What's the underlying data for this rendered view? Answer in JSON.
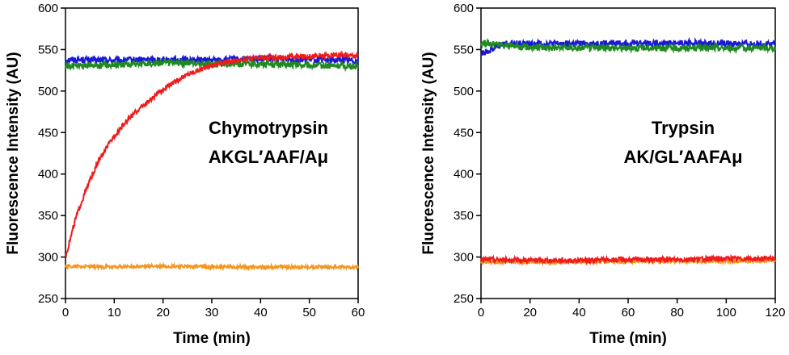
{
  "chart_data": [
    {
      "type": "line",
      "xlabel": "Time (min)",
      "ylabel": "Fluorescence Intensity (AU)",
      "xlim": [
        0,
        60
      ],
      "ylim": [
        250,
        600
      ],
      "xticks": [
        0,
        10,
        20,
        30,
        40,
        50,
        60
      ],
      "yticks": [
        250,
        300,
        350,
        400,
        450,
        500,
        550,
        600
      ],
      "annotation": [
        "Chymotrypsin",
        "AKGL′AAF/Aμ"
      ],
      "legend": "none",
      "series": [
        {
          "color": "#1a1ad6",
          "x": [
            0,
            10,
            20,
            30,
            40,
            50,
            60
          ],
          "y": [
            538,
            537,
            538,
            537,
            539,
            538,
            537
          ],
          "noise": 4
        },
        {
          "color": "#1f8a1f",
          "x": [
            0,
            10,
            20,
            30,
            40,
            50,
            60
          ],
          "y": [
            530,
            532,
            534,
            533,
            533,
            531,
            530
          ],
          "noise": 4
        },
        {
          "color": "#ee1c1c",
          "x": [
            0,
            1,
            2,
            3,
            5,
            7,
            10,
            13,
            15,
            18,
            20,
            23,
            25,
            28,
            30,
            33,
            35,
            40,
            45,
            50,
            55,
            60
          ],
          "y": [
            300,
            322,
            345,
            362,
            392,
            418,
            446,
            467,
            478,
            492,
            502,
            513,
            520,
            527,
            531,
            535,
            537,
            540,
            541,
            542,
            543,
            543
          ],
          "noise": 3
        },
        {
          "color": "#f5961e",
          "x": [
            0,
            10,
            20,
            30,
            40,
            50,
            60
          ],
          "y": [
            289,
            288,
            289,
            288,
            288,
            288,
            288
          ],
          "noise": 2
        }
      ]
    },
    {
      "type": "line",
      "xlabel": "Time (min)",
      "ylabel": "Fluorescence Intensity (AU)",
      "xlim": [
        0,
        120
      ],
      "ylim": [
        250,
        600
      ],
      "xticks": [
        0,
        20,
        40,
        60,
        80,
        100,
        120
      ],
      "yticks": [
        250,
        300,
        350,
        400,
        450,
        500,
        550,
        600
      ],
      "annotation": [
        "Trypsin",
        "AK/GL′AAFAμ"
      ],
      "legend": "none",
      "series": [
        {
          "color": "#1a1ad6",
          "x": [
            0,
            2,
            4,
            6,
            8,
            10,
            20,
            40,
            60,
            80,
            100,
            120
          ],
          "y": [
            545,
            547,
            550,
            553,
            555,
            557,
            557,
            557,
            558,
            558,
            557,
            557
          ],
          "noise": 4
        },
        {
          "color": "#1f8a1f",
          "x": [
            0,
            10,
            20,
            40,
            60,
            80,
            100,
            120
          ],
          "y": [
            558,
            555,
            553,
            552,
            552,
            552,
            552,
            552
          ],
          "noise": 4
        },
        {
          "color": "#f5961e",
          "x": [
            0,
            20,
            40,
            60,
            80,
            100,
            120
          ],
          "y": [
            294,
            294,
            294,
            295,
            295,
            295,
            296
          ],
          "noise": 2
        },
        {
          "color": "#ee1c1c",
          "x": [
            0,
            20,
            40,
            60,
            80,
            100,
            120
          ],
          "y": [
            297,
            296,
            296,
            297,
            297,
            298,
            298
          ],
          "noise": 3
        }
      ]
    }
  ]
}
